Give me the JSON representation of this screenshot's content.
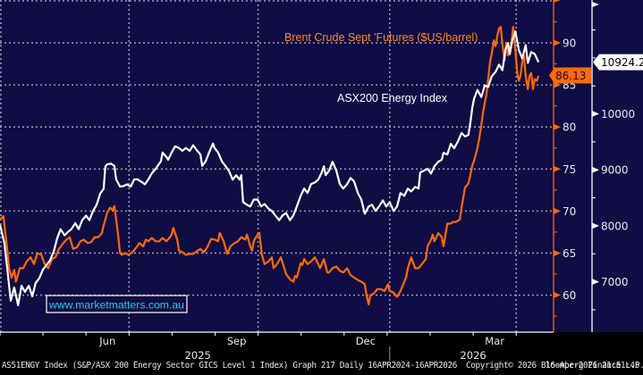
{
  "chart_data": {
    "type": "line",
    "title": "",
    "x_unit": "months since 1-Apr-2025",
    "x_tick_labels": [
      {
        "label": "Jun",
        "x": 2.5
      },
      {
        "label": "Sep",
        "x": 5.5
      },
      {
        "label": "Dec",
        "x": 8.5
      },
      {
        "label": "Mar",
        "x": 11.5
      }
    ],
    "year_labels": [
      {
        "label": "2025",
        "x": 4.6
      },
      {
        "label": "2026",
        "x": 11.0
      }
    ],
    "year_divider_x": 9.06,
    "x_minor_ticks": [
      1,
      2,
      3,
      4,
      5,
      6,
      7,
      8,
      9,
      10,
      11,
      12
    ],
    "x_gridlines": [
      3,
      6,
      9.06,
      12
    ],
    "xlim": [
      0,
      12.87
    ],
    "grid": true,
    "left_axis": {
      "series": "Brent Crude Sept 'Futures ($US/barrel)",
      "ylim": [
        55.6,
        95.1
      ],
      "ticks": [
        60,
        65,
        70,
        75,
        80,
        85,
        90
      ],
      "minor_ticks": [
        57.5,
        62.5,
        67.5,
        72.5,
        77.5,
        82.5,
        87.5,
        92.5
      ],
      "color": "#ff6a00"
    },
    "right_axis": {
      "series": "ASX200 Energy Index",
      "ylim": [
        6100,
        12035
      ],
      "ticks": [
        7000,
        8000,
        9000,
        10000
      ],
      "minor_ticks": [
        6500,
        7500,
        8500,
        9500,
        10500,
        11000,
        11500
      ],
      "color": "#ffffff"
    },
    "series": [
      {
        "name": "ASX200 Energy Index",
        "axis": "right",
        "color": "#ffffff",
        "last_value_label": "10924.2",
        "x": [
          0.0,
          0.1,
          0.17,
          0.25,
          0.33,
          0.42,
          0.5,
          0.58,
          0.67,
          0.75,
          0.83,
          0.91,
          1.0,
          1.08,
          1.16,
          1.25,
          1.33,
          1.41,
          1.5,
          1.58,
          1.66,
          1.75,
          1.83,
          1.91,
          2.0,
          2.08,
          2.16,
          2.25,
          2.33,
          2.41,
          2.45,
          2.49,
          2.58,
          2.66,
          2.7,
          2.79,
          2.87,
          2.95,
          3.04,
          3.12,
          3.2,
          3.28,
          3.37,
          3.45,
          3.53,
          3.62,
          3.7,
          3.74,
          3.78,
          3.87,
          3.91,
          3.99,
          4.07,
          4.16,
          4.24,
          4.32,
          4.41,
          4.49,
          4.57,
          4.66,
          4.7,
          4.78,
          4.86,
          4.95,
          4.99,
          5.07,
          5.16,
          5.24,
          5.32,
          5.41,
          5.49,
          5.57,
          5.61,
          5.65,
          5.74,
          5.82,
          5.9,
          5.99,
          6.07,
          6.15,
          6.24,
          6.32,
          6.4,
          6.49,
          6.57,
          6.65,
          6.74,
          6.82,
          6.9,
          6.99,
          7.07,
          7.15,
          7.23,
          7.32,
          7.4,
          7.48,
          7.53,
          7.57,
          7.65,
          7.73,
          7.82,
          7.9,
          7.98,
          8.07,
          8.15,
          8.23,
          8.32,
          8.4,
          8.48,
          8.57,
          8.65,
          8.73,
          8.81,
          8.9,
          8.98,
          9.06,
          9.15,
          9.23,
          9.31,
          9.4,
          9.48,
          9.56,
          9.65,
          9.73,
          9.77,
          9.85,
          9.94,
          10.02,
          10.1,
          10.19,
          10.27,
          10.31,
          10.4,
          10.48,
          10.56,
          10.64,
          10.73,
          10.81,
          10.89,
          10.94,
          10.98,
          11.02,
          11.1,
          11.19,
          11.27,
          11.35,
          11.43,
          11.52,
          11.6,
          11.68,
          11.75,
          11.81,
          11.85,
          11.91,
          11.98,
          12.06,
          12.14,
          12.22,
          12.27,
          12.35,
          12.43,
          12.52
        ],
        "values": [
          8020,
          7700,
          7220,
          6660,
          6900,
          6580,
          6930,
          6820,
          6930,
          6740,
          6980,
          7060,
          7220,
          7300,
          7380,
          7540,
          7780,
          7940,
          7830,
          7890,
          7940,
          8050,
          7940,
          8100,
          8180,
          8100,
          8260,
          8380,
          8580,
          8660,
          9060,
          9100,
          9110,
          9070,
          8830,
          8700,
          8710,
          8740,
          8700,
          8830,
          8830,
          8790,
          8740,
          8830,
          8940,
          9020,
          9110,
          9150,
          9310,
          9230,
          9180,
          9310,
          9420,
          9390,
          9340,
          9390,
          9340,
          9440,
          9355,
          9275,
          9070,
          9150,
          9310,
          9470,
          9390,
          9310,
          9150,
          9070,
          8985,
          8825,
          8905,
          8825,
          8905,
          8425,
          8375,
          8345,
          8470,
          8470,
          8345,
          8390,
          8310,
          8265,
          8185,
          8100,
          8185,
          8230,
          8100,
          8185,
          8345,
          8535,
          8665,
          8585,
          8745,
          8775,
          8825,
          8955,
          9065,
          8905,
          8985,
          9145,
          8985,
          8745,
          8665,
          8745,
          8855,
          8795,
          8585,
          8470,
          8215,
          8345,
          8375,
          8265,
          8345,
          8455,
          8345,
          8425,
          8265,
          8345,
          8585,
          8535,
          8665,
          8615,
          8695,
          8665,
          8955,
          8985,
          9020,
          8935,
          9065,
          9145,
          9180,
          9305,
          9275,
          9465,
          9385,
          9500,
          9660,
          9595,
          9625,
          9870,
          10110,
          10270,
          10430,
          10300,
          10510,
          10480,
          10670,
          10750,
          10880,
          10780,
          11150,
          11265,
          11070,
          11310,
          11475,
          11150,
          10990,
          11230,
          10910,
          11105,
          11070,
          10925
        ]
      },
      {
        "name": "Brent Crude Sept 'Futures ($US/barrel)",
        "axis": "left",
        "color": "#ff6a00",
        "last_value_label": "86.13",
        "x": [
          0.0,
          0.08,
          0.17,
          0.21,
          0.27,
          0.33,
          0.37,
          0.46,
          0.54,
          0.62,
          0.71,
          0.79,
          0.87,
          0.96,
          1.04,
          1.12,
          1.21,
          1.29,
          1.37,
          1.46,
          1.54,
          1.62,
          1.7,
          1.79,
          1.87,
          1.95,
          2.04,
          2.12,
          2.2,
          2.29,
          2.37,
          2.41,
          2.45,
          2.49,
          2.56,
          2.62,
          2.66,
          2.7,
          2.74,
          2.79,
          2.83,
          2.91,
          2.99,
          3.08,
          3.16,
          3.24,
          3.33,
          3.39,
          3.45,
          3.53,
          3.62,
          3.7,
          3.78,
          3.87,
          3.95,
          3.99,
          4.03,
          4.12,
          4.16,
          4.24,
          4.32,
          4.41,
          4.49,
          4.57,
          4.66,
          4.74,
          4.82,
          4.91,
          4.99,
          5.07,
          5.11,
          5.2,
          5.28,
          5.36,
          5.45,
          5.53,
          5.61,
          5.7,
          5.74,
          5.82,
          5.86,
          5.9,
          5.95,
          5.99,
          6.03,
          6.09,
          6.15,
          6.24,
          6.32,
          6.36,
          6.44,
          6.53,
          6.61,
          6.65,
          6.74,
          6.82,
          6.86,
          6.9,
          6.99,
          7.03,
          7.07,
          7.15,
          7.23,
          7.32,
          7.4,
          7.44,
          7.53,
          7.61,
          7.65,
          7.73,
          7.82,
          7.9,
          7.98,
          8.07,
          8.15,
          8.23,
          8.32,
          8.4,
          8.48,
          8.52,
          8.57,
          8.61,
          8.69,
          8.77,
          8.86,
          8.94,
          9.02,
          9.06,
          9.15,
          9.23,
          9.31,
          9.36,
          9.44,
          9.48,
          9.56,
          9.65,
          9.73,
          9.81,
          9.9,
          9.94,
          10.02,
          10.06,
          10.1,
          10.19,
          10.27,
          10.31,
          10.4,
          10.48,
          10.52,
          10.6,
          10.69,
          10.73,
          10.81,
          10.89,
          10.94,
          10.98,
          11.02,
          11.1,
          11.14,
          11.19,
          11.23,
          11.27,
          11.31,
          11.35,
          11.39,
          11.43,
          11.48,
          11.52,
          11.56,
          11.6,
          11.64,
          11.68,
          11.73,
          11.77,
          11.81,
          11.85,
          11.89,
          11.93,
          11.98,
          12.02,
          12.06,
          12.1,
          12.14,
          12.18,
          12.22,
          12.27,
          12.31,
          12.35,
          12.39,
          12.43,
          12.48,
          12.52
        ],
        "values": [
          69.0,
          69.4,
          65.3,
          63.2,
          62.1,
          63.0,
          61.6,
          63.2,
          63.2,
          64.0,
          64.5,
          63.7,
          65.0,
          64.8,
          63.7,
          63.2,
          64.3,
          64.5,
          65.5,
          66.1,
          66.6,
          66.9,
          65.5,
          65.7,
          66.4,
          66.6,
          66.2,
          66.3,
          66.9,
          66.9,
          67.4,
          68.3,
          69.0,
          69.8,
          70.4,
          70.1,
          70.6,
          69.0,
          67.4,
          65.0,
          64.8,
          65.0,
          64.8,
          65.1,
          65.6,
          66.2,
          65.8,
          66.6,
          66.4,
          66.8,
          66.4,
          66.4,
          66.8,
          66.4,
          66.9,
          67.2,
          68.0,
          66.6,
          65.3,
          65.1,
          64.8,
          64.9,
          64.9,
          65.2,
          65.5,
          65.1,
          65.7,
          66.7,
          66.6,
          66.4,
          67.4,
          66.4,
          64.9,
          65.8,
          66.2,
          66.4,
          66.9,
          66.6,
          67.2,
          65.8,
          65.3,
          66.4,
          66.9,
          67.2,
          67.4,
          64.8,
          63.7,
          64.0,
          64.5,
          63.2,
          63.7,
          64.5,
          63.2,
          62.5,
          61.9,
          61.6,
          62.3,
          62.1,
          63.8,
          63.6,
          64.3,
          63.7,
          64.0,
          64.5,
          63.7,
          63.2,
          64.3,
          62.7,
          62.7,
          63.2,
          63.4,
          62.9,
          62.7,
          63.2,
          62.4,
          62.1,
          61.8,
          61.6,
          61.3,
          60.0,
          58.9,
          60.0,
          60.2,
          60.7,
          60.7,
          60.5,
          61.3,
          60.5,
          60.3,
          59.8,
          60.5,
          61.1,
          62.1,
          63.2,
          64.5,
          63.2,
          63.2,
          63.7,
          64.3,
          65.8,
          66.6,
          67.2,
          66.4,
          67.4,
          66.9,
          65.8,
          68.5,
          68.5,
          68.7,
          68.7,
          69.0,
          70.4,
          72.8,
          73.3,
          74.4,
          75.4,
          76.0,
          77.5,
          78.6,
          80.2,
          81.8,
          82.9,
          83.9,
          85.7,
          87.7,
          88.7,
          90.3,
          89.6,
          90.8,
          91.7,
          91.9,
          89.8,
          87.9,
          90.0,
          88.5,
          88.9,
          90.0,
          91.9,
          89.2,
          86.6,
          85.5,
          86.1,
          87.7,
          88.5,
          86.1,
          84.5,
          86.1,
          86.4,
          84.5,
          85.7,
          85.5,
          86.1
        ]
      }
    ],
    "annotations": [
      {
        "text": "Brent Crude Sept 'Futures ($US/barrel)",
        "color": "#ff8c1a"
      },
      {
        "text": "ASX200 Energy Index",
        "color": "#ffffff"
      },
      {
        "text": "www.marketmatters.com.au",
        "color": "#19d3e6"
      }
    ]
  },
  "footer": {
    "security": "AS51ENGY Index (S&P/ASX 200 Energy Sector GICS Level 1 Index) Graph 217 Daily 16APR2024-16APR2026",
    "copyright": "Copyright© 2026 Bloomberg Finance L.P.",
    "timestamp": "16-Apr-2026 21:51:45"
  },
  "colors": {
    "plot_bg": "#100c44",
    "grid": "#9a9aa8",
    "brent": "#ff6a00",
    "asx": "#ffffff",
    "watermark": "#19d3e6"
  }
}
